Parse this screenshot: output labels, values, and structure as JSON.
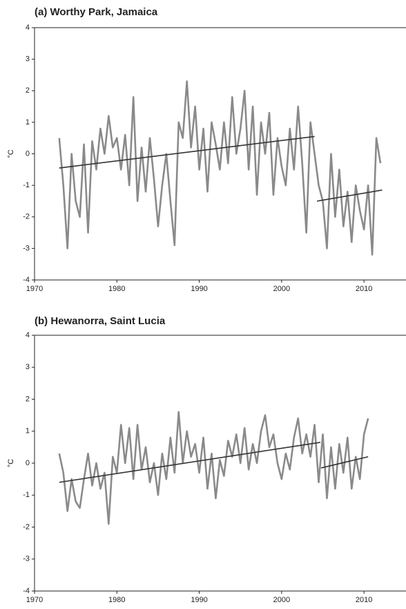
{
  "chart_data": [
    {
      "type": "line",
      "title": "(a) Worthy Park, Jamaica",
      "ylabel": "°C",
      "xlim": [
        1970,
        2015.1
      ],
      "ylim": [
        -4,
        4
      ],
      "xticks": [
        1970,
        1980,
        1990,
        2000,
        2010
      ],
      "yticks": [
        -4,
        -3,
        -2,
        -1,
        0,
        1,
        2,
        3,
        4
      ],
      "series": [
        {
          "color": "#8a8a8a",
          "x": [
            1973,
            1973.5,
            1974,
            1974.5,
            1975,
            1975.5,
            1976,
            1976.5,
            1977,
            1977.5,
            1978,
            1978.5,
            1979,
            1979.5,
            1980,
            1980.5,
            1981,
            1981.5,
            1982,
            1982.5,
            1983,
            1983.5,
            1984,
            1984.5,
            1985,
            1985.5,
            1986,
            1986.5,
            1987,
            1987.5,
            1988,
            1988.5,
            1989,
            1989.5,
            1990,
            1990.5,
            1991,
            1991.5,
            1992,
            1992.5,
            1993,
            1993.5,
            1994,
            1994.5,
            1995,
            1995.5,
            1996,
            1996.5,
            1997,
            1997.5,
            1998,
            1998.5,
            1999,
            1999.5,
            2000,
            2000.5,
            2001,
            2001.5,
            2002,
            2002.5,
            2003,
            2003.5,
            2004,
            2004.5,
            2005,
            2005.5,
            2006,
            2006.5,
            2007,
            2007.5,
            2008,
            2008.5,
            2009,
            2009.5,
            2010,
            2010.5,
            2011,
            2011.5,
            2012
          ],
          "values": [
            0.5,
            -1,
            -3,
            0,
            -1.5,
            -2,
            0.3,
            -2.5,
            0.4,
            -0.5,
            0.8,
            0,
            1.2,
            0.2,
            0.5,
            -0.5,
            0.6,
            -1,
            1.8,
            -1.5,
            0.2,
            -1.2,
            0.5,
            -0.8,
            -2.3,
            -1,
            0,
            -1.5,
            -2.9,
            1,
            0.5,
            2.3,
            0.2,
            1.5,
            -0.5,
            0.8,
            -1.2,
            1,
            0.3,
            -0.5,
            1,
            -0.3,
            1.8,
            0,
            0.8,
            2,
            -0.5,
            1.5,
            -1.3,
            1,
            0,
            1.3,
            -1.3,
            0.5,
            -0.4,
            -1,
            0.8,
            -0.5,
            1.5,
            -0.3,
            -2.5,
            1,
            0,
            -1,
            -1.5,
            -3,
            0,
            -2,
            -0.5,
            -2.3,
            -1.2,
            -2.8,
            -1,
            -1.8,
            -2.4,
            -1,
            -3.2,
            0.5,
            -0.3
          ]
        },
        {
          "color": "#333333",
          "x": [
            1973,
            2004
          ],
          "values": [
            -0.45,
            0.55
          ]
        },
        {
          "color": "#333333",
          "x": [
            2004.3,
            2012.2
          ],
          "values": [
            -1.5,
            -1.15
          ]
        }
      ]
    },
    {
      "type": "line",
      "title": "(b) Hewanorra, Saint Lucia",
      "ylabel": "°C",
      "xlim": [
        1970,
        2015.1
      ],
      "ylim": [
        -4,
        4
      ],
      "xticks": [
        1970,
        1980,
        1990,
        2000,
        2010
      ],
      "yticks": [
        -4,
        -3,
        -2,
        -1,
        0,
        1,
        2,
        3,
        4
      ],
      "series": [
        {
          "color": "#8a8a8a",
          "x": [
            1973,
            1973.5,
            1974,
            1974.5,
            1975,
            1975.5,
            1976,
            1976.5,
            1977,
            1977.5,
            1978,
            1978.5,
            1979,
            1979.5,
            1980,
            1980.5,
            1981,
            1981.5,
            1982,
            1982.5,
            1983,
            1983.5,
            1984,
            1984.5,
            1985,
            1985.5,
            1986,
            1986.5,
            1987,
            1987.5,
            1988,
            1988.5,
            1989,
            1989.5,
            1990,
            1990.5,
            1991,
            1991.5,
            1992,
            1992.5,
            1993,
            1993.5,
            1994,
            1994.5,
            1995,
            1995.5,
            1996,
            1996.5,
            1997,
            1997.5,
            1998,
            1998.5,
            1999,
            1999.5,
            2000,
            2000.5,
            2001,
            2001.5,
            2002,
            2002.5,
            2003,
            2003.5,
            2004,
            2004.5,
            2005,
            2005.5,
            2006,
            2006.5,
            2007,
            2007.5,
            2008,
            2008.5,
            2009,
            2009.5,
            2010,
            2010.5
          ],
          "values": [
            0.3,
            -0.3,
            -1.5,
            -0.5,
            -1.2,
            -1.4,
            -0.5,
            0.3,
            -0.7,
            0,
            -0.8,
            -0.3,
            -1.9,
            0.2,
            -0.3,
            1.2,
            0,
            1.1,
            -0.5,
            1.2,
            -0.2,
            0.5,
            -0.6,
            0,
            -1,
            0.3,
            -0.5,
            0.8,
            -0.3,
            1.6,
            0,
            1,
            0.2,
            0.6,
            -0.3,
            0.8,
            -0.8,
            0.3,
            -1.1,
            0.1,
            -0.4,
            0.7,
            0.2,
            0.9,
            0,
            1.1,
            -0.2,
            0.6,
            0,
            1,
            1.5,
            0.5,
            0.9,
            0,
            -0.5,
            0.3,
            -0.2,
            0.8,
            1.4,
            0.3,
            0.9,
            0.2,
            1.2,
            -0.6,
            0.9,
            -1.1,
            0.5,
            -0.8,
            0.6,
            -0.3,
            0.8,
            -0.8,
            0.2,
            -0.5,
            0.9,
            1.4
          ]
        },
        {
          "color": "#333333",
          "x": [
            1973,
            2004.7
          ],
          "values": [
            -0.6,
            0.65
          ]
        },
        {
          "color": "#333333",
          "x": [
            2004.8,
            2010.5
          ],
          "values": [
            -0.15,
            0.2
          ]
        }
      ]
    }
  ]
}
